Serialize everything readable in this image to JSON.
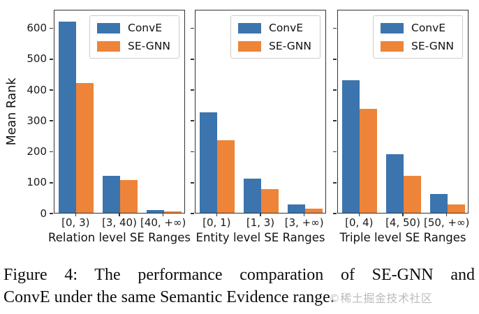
{
  "figure": {
    "ylabel": "Mean Rank",
    "legend": [
      "ConvE",
      "SE-GNN"
    ],
    "colors": {
      "ConvE": "#3c74ae",
      "SE-GNN": "#ed8439",
      "spine": "#333333"
    },
    "yticks": [
      0,
      100,
      200,
      300,
      400,
      500,
      600
    ],
    "ymax": 660
  },
  "chart_data": [
    {
      "type": "bar",
      "title": "",
      "xlabel": "Relation level SE Ranges",
      "ylabel": "Mean Rank",
      "categories": [
        "[0, 3)",
        "[3, 40)",
        "[40, +∞)"
      ],
      "series": [
        {
          "name": "ConvE",
          "values": [
            625,
            122,
            10
          ]
        },
        {
          "name": "SE-GNN",
          "values": [
            424,
            107,
            5
          ]
        }
      ],
      "ylim": [
        0,
        660
      ],
      "yticks": [
        0,
        100,
        200,
        300,
        400,
        500,
        600
      ],
      "grid": false,
      "legend_position": "upper right"
    },
    {
      "type": "bar",
      "title": "",
      "xlabel": "Entity level SE Ranges",
      "ylabel": "",
      "categories": [
        "[0, 1)",
        "[1, 3)",
        "[3, +∞)"
      ],
      "series": [
        {
          "name": "ConvE",
          "values": [
            330,
            113,
            27
          ]
        },
        {
          "name": "SE-GNN",
          "values": [
            237,
            78,
            14
          ]
        }
      ],
      "ylim": [
        0,
        660
      ],
      "yticks": [
        0,
        100,
        200,
        300,
        400,
        500,
        600
      ],
      "grid": false,
      "legend_position": "upper right"
    },
    {
      "type": "bar",
      "title": "",
      "xlabel": "Triple level SE Ranges",
      "ylabel": "",
      "categories": [
        "[0, 4)",
        "[4, 50)",
        "[50, +∞)"
      ],
      "series": [
        {
          "name": "ConvE",
          "values": [
            434,
            193,
            62
          ]
        },
        {
          "name": "SE-GNN",
          "values": [
            340,
            122,
            28
          ]
        }
      ],
      "ylim": [
        0,
        660
      ],
      "yticks": [
        0,
        100,
        200,
        300,
        400,
        500,
        600
      ],
      "grid": false,
      "legend_position": "upper right"
    }
  ],
  "caption": {
    "line1": "Figure 4: The performance comparation of SE-GNN and",
    "line2": "ConvE under the same Semantic Evidence range.",
    "watermark": "©稀土掘金技术社区"
  }
}
